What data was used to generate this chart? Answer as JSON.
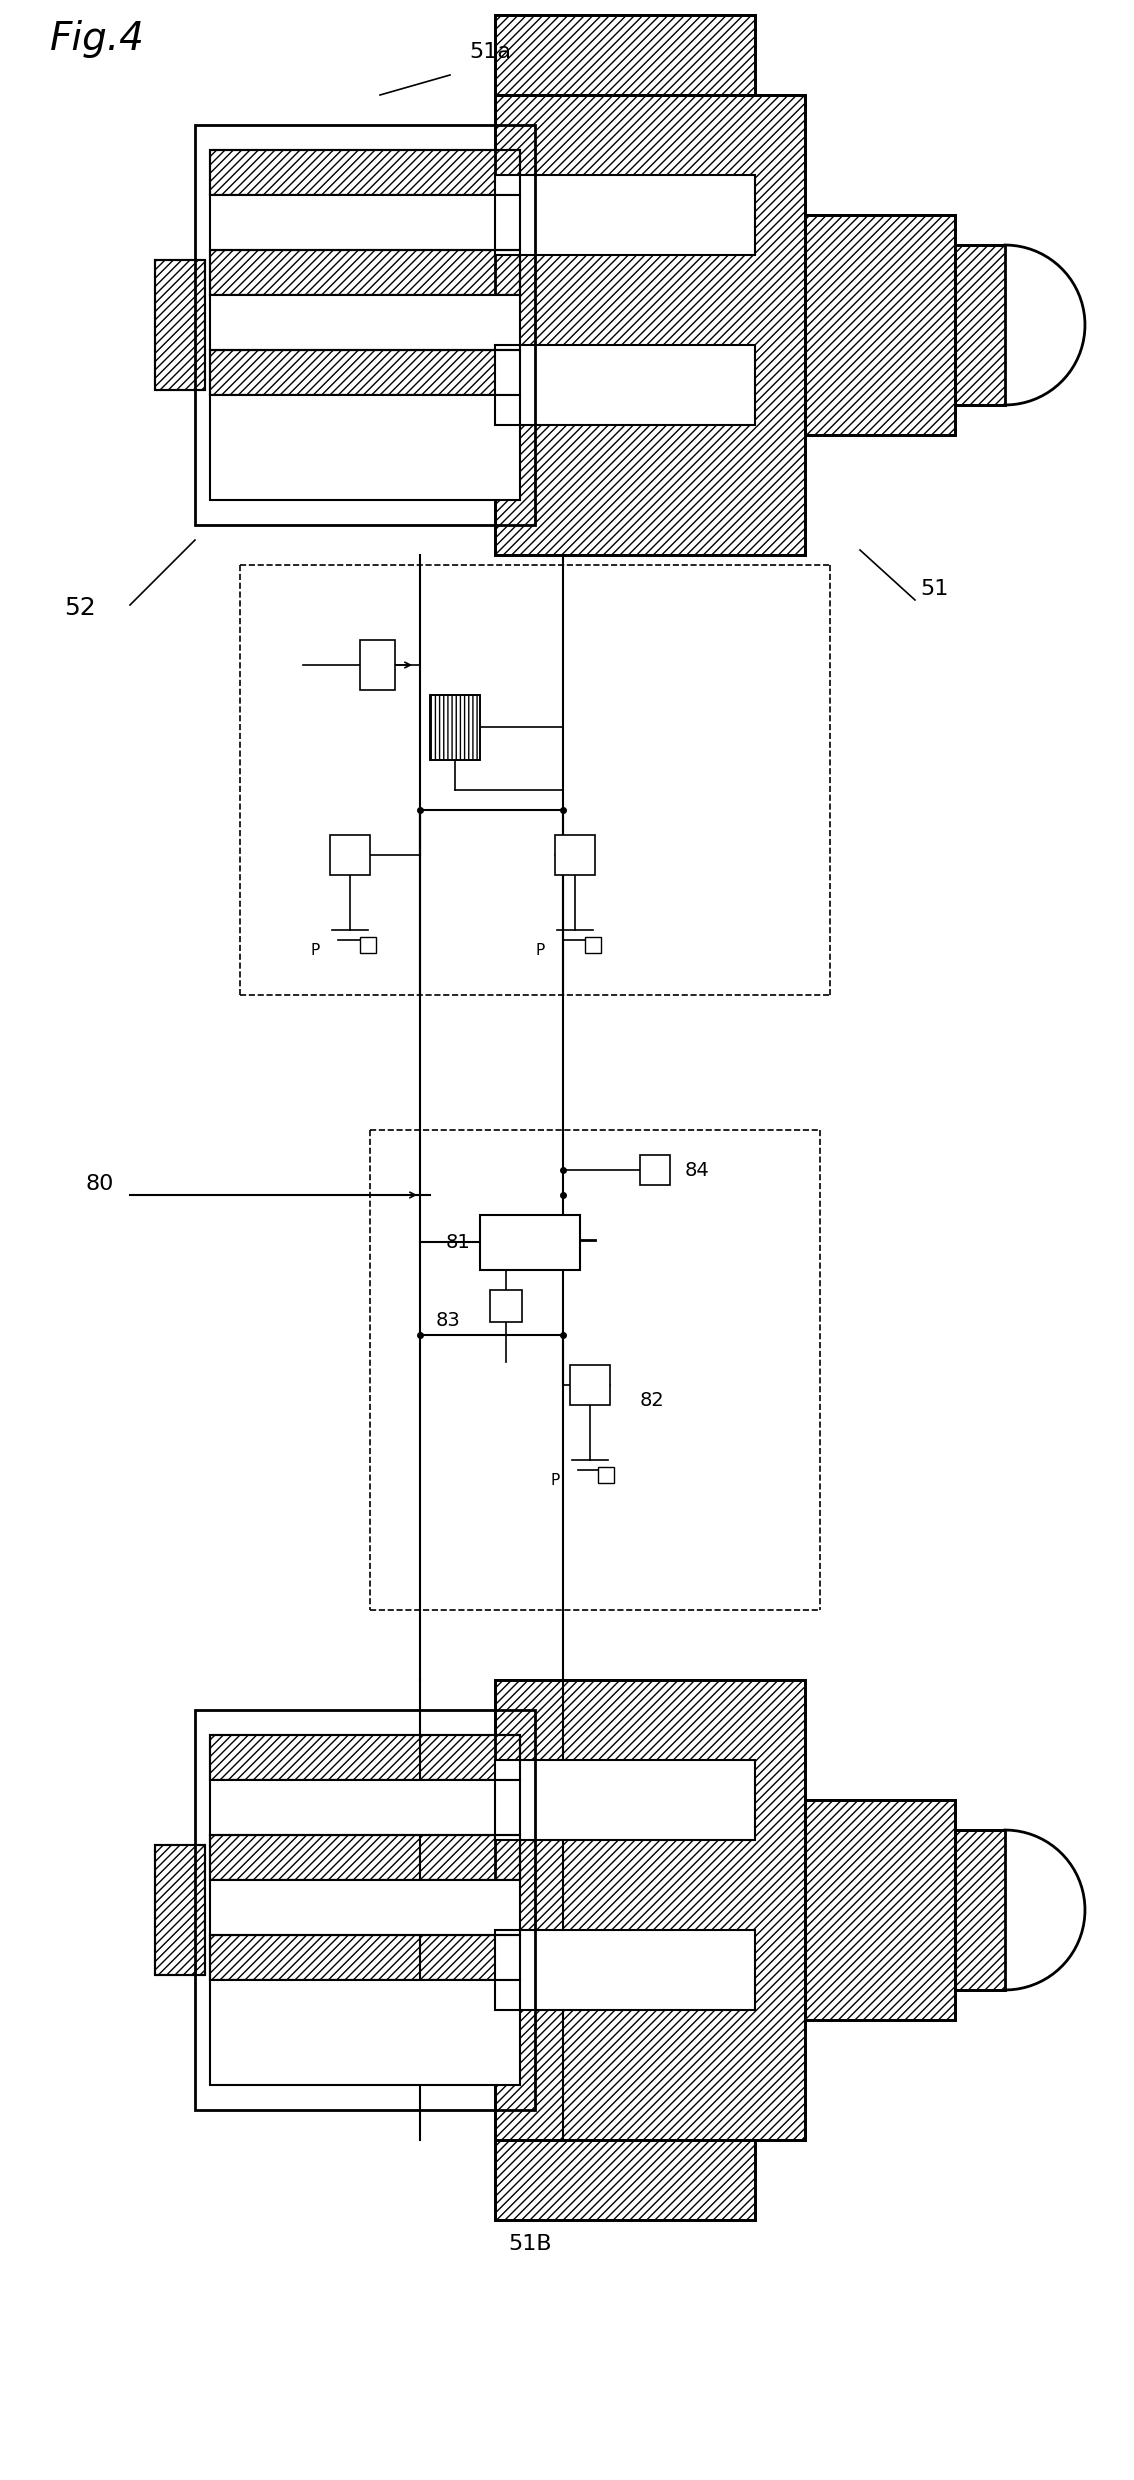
{
  "labels": {
    "fig": "Fig.4",
    "lbl_51a": "51a",
    "lbl_51": "51",
    "lbl_52": "52",
    "lbl_80": "80",
    "lbl_81": "81",
    "lbl_82": "82",
    "lbl_83": "83",
    "lbl_84": "84",
    "lbl_51B": "51B"
  },
  "bg_color": "#ffffff",
  "line_color": "#000000"
}
